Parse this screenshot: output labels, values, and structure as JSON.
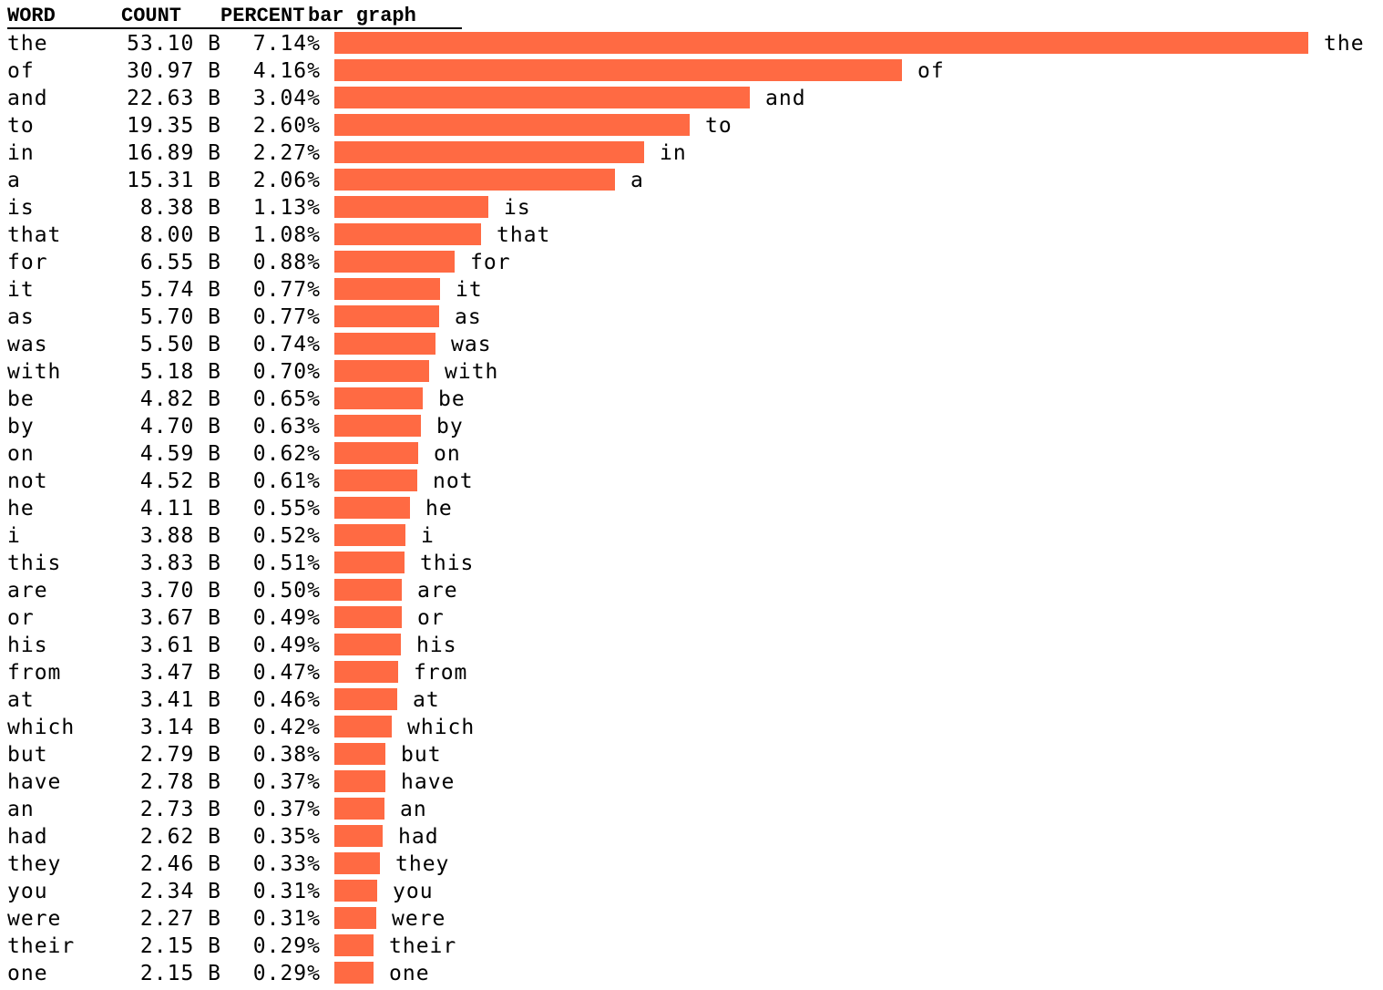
{
  "headers": {
    "word": "WORD",
    "count": "COUNT",
    "percent": "PERCENT",
    "graph": "bar graph"
  },
  "colors": {
    "bar": "#FF6A43",
    "text": "#000000",
    "background": "#FFFFFF"
  },
  "chart_data": {
    "type": "bar",
    "orientation": "horizontal",
    "categories": [
      "the",
      "of",
      "and",
      "to",
      "in",
      "a",
      "is",
      "that",
      "for",
      "it",
      "as",
      "was",
      "with",
      "be",
      "by",
      "on",
      "not",
      "he",
      "i",
      "this",
      "are",
      "or",
      "his",
      "from",
      "at",
      "which",
      "but",
      "have",
      "an",
      "had",
      "they",
      "you",
      "were",
      "their",
      "one"
    ],
    "counts": [
      "53.10 B",
      "30.97 B",
      "22.63 B",
      "19.35 B",
      "16.89 B",
      "15.31 B",
      "8.38 B",
      "8.00 B",
      "6.55 B",
      "5.74 B",
      "5.70 B",
      "5.50 B",
      "5.18 B",
      "4.82 B",
      "4.70 B",
      "4.59 B",
      "4.52 B",
      "4.11 B",
      "3.88 B",
      "3.83 B",
      "3.70 B",
      "3.67 B",
      "3.61 B",
      "3.47 B",
      "3.41 B",
      "3.14 B",
      "2.79 B",
      "2.78 B",
      "2.73 B",
      "2.62 B",
      "2.46 B",
      "2.34 B",
      "2.27 B",
      "2.15 B",
      "2.15 B"
    ],
    "percents": [
      "7.14%",
      "4.16%",
      "3.04%",
      "2.60%",
      "2.27%",
      "2.06%",
      "1.13%",
      "1.08%",
      "0.88%",
      "0.77%",
      "0.77%",
      "0.74%",
      "0.70%",
      "0.65%",
      "0.63%",
      "0.62%",
      "0.61%",
      "0.55%",
      "0.52%",
      "0.51%",
      "0.50%",
      "0.49%",
      "0.49%",
      "0.47%",
      "0.46%",
      "0.42%",
      "0.38%",
      "0.37%",
      "0.37%",
      "0.35%",
      "0.33%",
      "0.31%",
      "0.31%",
      "0.29%",
      "0.29%"
    ],
    "values": [
      53.1,
      30.97,
      22.63,
      19.35,
      16.89,
      15.31,
      8.38,
      8.0,
      6.55,
      5.74,
      5.7,
      5.5,
      5.18,
      4.82,
      4.7,
      4.59,
      4.52,
      4.11,
      3.88,
      3.83,
      3.7,
      3.67,
      3.61,
      3.47,
      3.41,
      3.14,
      2.79,
      2.78,
      2.73,
      2.62,
      2.46,
      2.34,
      2.27,
      2.15,
      2.15
    ],
    "value_unit": "B",
    "title": "",
    "xlabel": "",
    "ylabel": "",
    "legend": "none",
    "grid": false
  }
}
